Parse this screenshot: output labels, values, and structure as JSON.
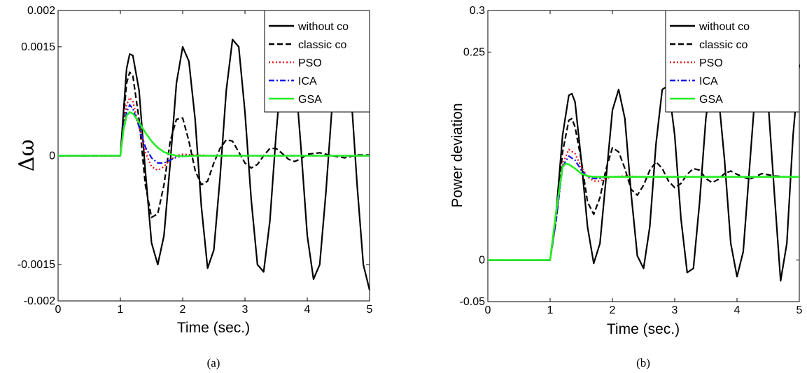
{
  "chart_data": [
    {
      "type": "line",
      "caption": "(a)",
      "xlabel": "Time (sec.)",
      "ylabel": "Δω",
      "xlim": [
        0,
        5
      ],
      "ylim": [
        -0.002,
        0.002
      ],
      "xticks": [
        0,
        1,
        2,
        3,
        4,
        5
      ],
      "xtick_labels": [
        "0",
        "1",
        "2",
        "3",
        "4",
        "5"
      ],
      "yticks": [
        -0.002,
        -0.0015,
        0,
        0.0015,
        0.002
      ],
      "ytick_labels": [
        "-0.002",
        "-0.0015",
        "0",
        "0.0015",
        "0.002"
      ],
      "grid": false,
      "legend_position": "top-right",
      "series": [
        {
          "name": "without co",
          "color": "#000000",
          "dash": "solid",
          "x": [
            0,
            1.0,
            1.05,
            1.1,
            1.15,
            1.2,
            1.3,
            1.4,
            1.5,
            1.6,
            1.7,
            1.8,
            1.9,
            2.0,
            2.1,
            2.2,
            2.3,
            2.4,
            2.5,
            2.6,
            2.7,
            2.8,
            2.9,
            3.0,
            3.1,
            3.2,
            3.3,
            3.4,
            3.5,
            3.6,
            3.7,
            3.8,
            3.9,
            4.0,
            4.1,
            4.2,
            4.3,
            4.4,
            4.5,
            4.6,
            4.7,
            4.8,
            4.9,
            5.0
          ],
          "y": [
            0,
            0,
            0.0006,
            0.0012,
            0.0014,
            0.00138,
            0.0009,
            -0.0002,
            -0.0012,
            -0.0015,
            -0.0011,
            -0.0001,
            0.001,
            0.0015,
            0.0013,
            0.0005,
            -0.0007,
            -0.00155,
            -0.0013,
            -0.0003,
            0.0009,
            0.0016,
            0.0015,
            0.0006,
            -0.0006,
            -0.0015,
            -0.0016,
            -0.0009,
            0.0003,
            0.0013,
            0.0017,
            0.0012,
            0.0001,
            -0.0011,
            -0.0017,
            -0.0015,
            -0.0005,
            0.0007,
            0.0016,
            0.0017,
            0.0009,
            -0.0004,
            -0.0015,
            -0.00185
          ]
        },
        {
          "name": "classic co",
          "color": "#000000",
          "dash": "dashed",
          "x": [
            0,
            1.0,
            1.05,
            1.1,
            1.15,
            1.2,
            1.3,
            1.4,
            1.5,
            1.6,
            1.7,
            1.8,
            1.9,
            2.0,
            2.1,
            2.2,
            2.3,
            2.4,
            2.5,
            2.6,
            2.7,
            2.8,
            2.9,
            3.0,
            3.1,
            3.2,
            3.3,
            3.4,
            3.5,
            3.6,
            3.7,
            3.8,
            3.9,
            4.0,
            4.2,
            4.4,
            4.6,
            4.8,
            5.0
          ],
          "y": [
            0,
            0,
            0.0005,
            0.001,
            0.00115,
            0.0011,
            0.0005,
            -0.0004,
            -0.00085,
            -0.0008,
            -0.0004,
            0.0002,
            0.0005,
            0.00052,
            0.0002,
            -0.0002,
            -0.0004,
            -0.00035,
            -0.0001,
            0.0001,
            0.00022,
            0.0002,
            5e-05,
            -0.0001,
            -0.00017,
            -0.00012,
            0,
            0.0001,
            0.0001,
            3e-05,
            -5e-05,
            -8e-05,
            -4e-05,
            2e-05,
            4e-05,
            0,
            -3e-05,
            1e-05,
            1e-05
          ]
        },
        {
          "name": "PSO",
          "color": "#ee1111",
          "dash": "dotted",
          "x": [
            0,
            1.0,
            1.05,
            1.1,
            1.15,
            1.2,
            1.3,
            1.4,
            1.5,
            1.6,
            1.7,
            1.8,
            1.9,
            2.0,
            2.2,
            2.5,
            3.0,
            3.5,
            4.0,
            4.5,
            5.0
          ],
          "y": [
            0,
            0,
            0.0004,
            0.0007,
            0.0008,
            0.00075,
            0.0004,
            5e-05,
            -0.00015,
            -0.0002,
            -0.00015,
            -6e-05,
            0,
            2e-05,
            1e-05,
            0,
            0,
            0,
            0,
            0,
            0
          ]
        },
        {
          "name": "ICA",
          "color": "#1111ee",
          "dash": "dashdot",
          "x": [
            0,
            1.0,
            1.05,
            1.1,
            1.15,
            1.2,
            1.3,
            1.4,
            1.5,
            1.6,
            1.7,
            1.8,
            1.9,
            2.0,
            2.2,
            2.5,
            3.0,
            3.5,
            4.0,
            4.5,
            5.0
          ],
          "y": [
            0,
            0,
            0.0004,
            0.0006,
            0.0007,
            0.00065,
            0.0004,
            0.00012,
            -3e-05,
            -0.0001,
            -0.0001,
            -6e-05,
            -2e-05,
            0,
            0,
            0,
            0,
            0,
            0,
            0,
            0
          ]
        },
        {
          "name": "GSA",
          "color": "#22ee22",
          "dash": "solid",
          "x": [
            0,
            1.0,
            1.05,
            1.1,
            1.15,
            1.2,
            1.3,
            1.4,
            1.5,
            1.6,
            1.7,
            1.8,
            1.9,
            2.0,
            2.2,
            2.5,
            3.0,
            3.5,
            4.0,
            4.5,
            5.0
          ],
          "y": [
            0,
            0,
            0.00035,
            0.00055,
            0.0006,
            0.00058,
            0.00046,
            0.00032,
            0.0002,
            0.00011,
            5e-05,
            2e-05,
            0,
            -1e-05,
            0,
            0,
            0,
            0,
            0,
            0,
            0
          ]
        }
      ]
    },
    {
      "type": "line",
      "caption": "(b)",
      "xlabel": "Time (sec.)",
      "ylabel": "Power deviation",
      "xlim": [
        0,
        5
      ],
      "ylim": [
        -0.05,
        0.3
      ],
      "xticks": [
        0,
        1,
        2,
        3,
        4,
        5
      ],
      "xtick_labels": [
        "0",
        "1",
        "2",
        "3",
        "4",
        "5"
      ],
      "yticks": [
        -0.05,
        0,
        0.25,
        0.3
      ],
      "ytick_labels": [
        "-0.05",
        "0",
        "0.25",
        "0.3"
      ],
      "grid": false,
      "legend_position": "top-right",
      "series": [
        {
          "name": "without co",
          "color": "#000000",
          "dash": "solid",
          "x": [
            0,
            1.0,
            1.1,
            1.2,
            1.3,
            1.35,
            1.4,
            1.5,
            1.6,
            1.7,
            1.8,
            1.9,
            2.0,
            2.1,
            2.2,
            2.3,
            2.4,
            2.5,
            2.6,
            2.7,
            2.8,
            2.9,
            3.0,
            3.1,
            3.2,
            3.3,
            3.4,
            3.5,
            3.6,
            3.7,
            3.8,
            3.9,
            4.0,
            4.1,
            4.2,
            4.3,
            4.4,
            4.5,
            4.6,
            4.7,
            4.8,
            4.9,
            5.0
          ],
          "y": [
            0,
            0,
            0.06,
            0.15,
            0.198,
            0.2,
            0.19,
            0.12,
            0.04,
            -0.004,
            0.02,
            0.1,
            0.18,
            0.205,
            0.17,
            0.08,
            0.005,
            -0.01,
            0.04,
            0.14,
            0.205,
            0.21,
            0.15,
            0.05,
            -0.015,
            -0.01,
            0.07,
            0.17,
            0.225,
            0.2,
            0.12,
            0.02,
            -0.02,
            0.01,
            0.11,
            0.21,
            0.24,
            0.19,
            0.08,
            -0.025,
            0.02,
            0.15,
            0.235
          ]
        },
        {
          "name": "classic co",
          "color": "#000000",
          "dash": "dashed",
          "x": [
            0,
            1.0,
            1.1,
            1.2,
            1.3,
            1.35,
            1.4,
            1.5,
            1.6,
            1.7,
            1.8,
            1.9,
            2.0,
            2.1,
            2.2,
            2.3,
            2.4,
            2.5,
            2.6,
            2.7,
            2.8,
            2.9,
            3.0,
            3.1,
            3.2,
            3.3,
            3.4,
            3.5,
            3.6,
            3.7,
            3.8,
            3.9,
            4.0,
            4.2,
            4.4,
            4.6,
            4.8,
            5.0
          ],
          "y": [
            0,
            0,
            0.05,
            0.13,
            0.168,
            0.17,
            0.16,
            0.12,
            0.07,
            0.055,
            0.075,
            0.11,
            0.135,
            0.13,
            0.11,
            0.085,
            0.078,
            0.09,
            0.108,
            0.118,
            0.11,
            0.095,
            0.087,
            0.092,
            0.103,
            0.11,
            0.108,
            0.098,
            0.093,
            0.097,
            0.104,
            0.107,
            0.103,
            0.097,
            0.104,
            0.101,
            0.1,
            0.1
          ]
        },
        {
          "name": "PSO",
          "color": "#ee1111",
          "dash": "dotted",
          "x": [
            0,
            1.0,
            1.1,
            1.2,
            1.3,
            1.4,
            1.5,
            1.6,
            1.7,
            1.8,
            1.9,
            2.0,
            2.2,
            2.5,
            3.0,
            3.5,
            4.0,
            4.5,
            5.0
          ],
          "y": [
            0,
            0,
            0.05,
            0.115,
            0.133,
            0.128,
            0.112,
            0.1,
            0.095,
            0.095,
            0.098,
            0.1,
            0.101,
            0.1,
            0.1,
            0.1,
            0.1,
            0.1,
            0.1
          ]
        },
        {
          "name": "ICA",
          "color": "#1111ee",
          "dash": "dashdot",
          "x": [
            0,
            1.0,
            1.1,
            1.2,
            1.3,
            1.4,
            1.5,
            1.6,
            1.7,
            1.8,
            1.9,
            2.0,
            2.2,
            2.5,
            3.0,
            3.5,
            4.0,
            4.5,
            5.0
          ],
          "y": [
            0,
            0,
            0.05,
            0.112,
            0.125,
            0.12,
            0.108,
            0.1,
            0.098,
            0.098,
            0.1,
            0.1,
            0.1,
            0.1,
            0.1,
            0.1,
            0.1,
            0.1,
            0.1
          ]
        },
        {
          "name": "GSA",
          "color": "#22ee22",
          "dash": "solid",
          "x": [
            0,
            1.0,
            1.1,
            1.2,
            1.25,
            1.3,
            1.4,
            1.5,
            1.6,
            1.7,
            1.8,
            1.9,
            2.0,
            2.5,
            3.0,
            3.5,
            4.0,
            4.5,
            5.0
          ],
          "y": [
            0,
            0,
            0.06,
            0.112,
            0.116,
            0.115,
            0.11,
            0.104,
            0.101,
            0.1,
            0.1,
            0.1,
            0.1,
            0.1,
            0.1,
            0.1,
            0.1,
            0.1,
            0.1
          ]
        }
      ]
    }
  ]
}
